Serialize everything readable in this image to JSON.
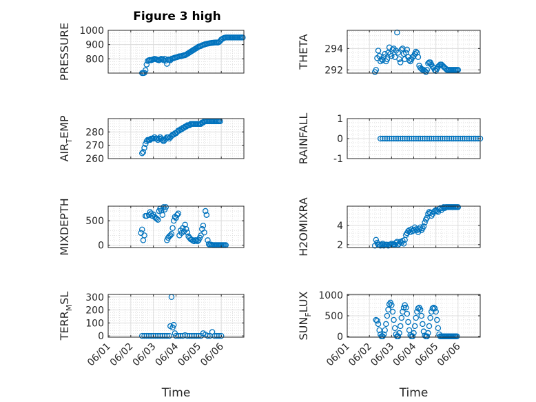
{
  "colors": {
    "marker": "#0072BD",
    "axis": "#262626",
    "grid": "#dcdcdc"
  },
  "chart_data": [
    {
      "type": "scatter",
      "title": "Figure 3 high",
      "ylabel": "PRESSURE",
      "xlabel": "",
      "ylim": [
        700,
        1000
      ],
      "yticks": [
        800,
        900,
        1000
      ],
      "x": [
        1.5,
        1.55,
        1.6,
        1.65,
        1.7,
        1.75,
        1.8,
        1.85,
        1.9,
        1.95,
        2.0,
        2.05,
        2.1,
        2.15,
        2.2,
        2.25,
        2.3,
        2.35,
        2.4,
        2.45,
        2.5,
        2.55,
        2.6,
        2.65,
        2.7,
        2.75,
        2.8,
        2.85,
        2.9,
        2.95,
        3.0,
        3.05,
        3.1,
        3.15,
        3.2,
        3.25,
        3.3,
        3.35,
        3.4,
        3.45,
        3.5,
        3.55,
        3.6,
        3.65,
        3.7,
        3.75,
        3.8,
        3.85,
        3.9,
        3.95,
        4.0,
        4.05,
        4.1,
        4.15,
        4.2,
        4.25,
        4.3,
        4.35,
        4.4,
        4.45,
        4.5,
        4.55,
        4.6,
        4.65,
        4.7,
        4.75,
        4.8,
        4.85,
        4.9,
        4.95,
        5.0,
        5.05,
        5.1,
        5.15,
        5.2,
        5.25,
        5.3,
        5.35,
        5.4,
        5.45,
        5.5,
        5.55,
        5.6,
        5.65,
        5.7,
        5.75,
        5.8,
        5.85,
        5.9,
        5.95
      ],
      "y": [
        700,
        700,
        702,
        720,
        760,
        785,
        790,
        792,
        790,
        793,
        797,
        800,
        798,
        795,
        792,
        790,
        795,
        800,
        798,
        790,
        800,
        788,
        765,
        795,
        793,
        790,
        800,
        803,
        805,
        808,
        810,
        812,
        815,
        818,
        818,
        820,
        822,
        825,
        826,
        830,
        835,
        840,
        845,
        850,
        855,
        860,
        865,
        870,
        875,
        880,
        885,
        888,
        890,
        895,
        897,
        900,
        903,
        905,
        907,
        908,
        910,
        911,
        912,
        913,
        914,
        915,
        915,
        914,
        918,
        925,
        935,
        940,
        945,
        948,
        950,
        950,
        950,
        950,
        950,
        950,
        950,
        950,
        950,
        950,
        950,
        950,
        950,
        950,
        950,
        950
      ]
    },
    {
      "type": "scatter",
      "title": "",
      "ylabel": "THETA",
      "xlabel": "",
      "ylim": [
        291.7,
        295.7
      ],
      "yticks": [
        292,
        294
      ],
      "x": [
        1.25,
        1.3,
        1.35,
        1.4,
        1.45,
        1.5,
        1.55,
        1.6,
        1.65,
        1.7,
        1.75,
        1.8,
        1.85,
        1.9,
        1.95,
        2.0,
        2.05,
        2.1,
        2.15,
        2.2,
        2.25,
        2.3,
        2.35,
        2.4,
        2.45,
        2.5,
        2.55,
        2.6,
        2.65,
        2.7,
        2.75,
        2.8,
        2.85,
        2.9,
        2.95,
        3.0,
        3.05,
        3.1,
        3.15,
        3.2,
        3.25,
        3.3,
        3.35,
        3.4,
        3.45,
        3.5,
        3.55,
        3.6,
        3.65,
        3.7,
        3.75,
        3.8,
        3.85,
        3.9,
        3.95,
        4.0,
        4.05,
        4.1,
        4.15,
        4.2,
        4.25,
        4.3,
        4.35,
        4.4,
        4.45,
        4.5,
        4.55,
        4.6,
        4.65,
        4.7,
        4.75,
        4.8,
        4.85,
        4.9,
        4.95,
        5.0
      ],
      "y": [
        291.8,
        292.0,
        293.1,
        293.8,
        293.3,
        292.8,
        293.0,
        292.9,
        293.2,
        293.5,
        292.8,
        293.0,
        293.6,
        294.1,
        293.5,
        293.3,
        293.9,
        294.0,
        293.2,
        293.8,
        295.5,
        293.6,
        293.0,
        292.7,
        293.9,
        294.0,
        293.5,
        293.0,
        293.6,
        293.9,
        293.2,
        292.9,
        292.8,
        293.0,
        293.2,
        293.3,
        293.5,
        293.7,
        293.6,
        293.2,
        292.4,
        292.2,
        292.1,
        292.0,
        292.0,
        291.9,
        291.8,
        292.0,
        292.6,
        292.7,
        292.7,
        292.5,
        292.3,
        292.2,
        292.0,
        291.9,
        292.1,
        292.3,
        292.4,
        292.5,
        292.5,
        292.4,
        292.3,
        292.2,
        292.1,
        292.0,
        292.0,
        292.0,
        292.0,
        292.0,
        292.0,
        292.0,
        292.0,
        292.0,
        292.0,
        292.0
      ]
    },
    {
      "type": "scatter",
      "title": "",
      "ylabel": "AIR_TEMP",
      "xlabel": "",
      "ylim": [
        260,
        290
      ],
      "yticks": [
        260,
        270,
        280
      ],
      "x": [
        1.5,
        1.55,
        1.6,
        1.65,
        1.7,
        1.75,
        1.8,
        1.85,
        1.9,
        1.95,
        2.0,
        2.05,
        2.1,
        2.15,
        2.2,
        2.25,
        2.3,
        2.35,
        2.4,
        2.45,
        2.5,
        2.55,
        2.6,
        2.65,
        2.7,
        2.75,
        2.8,
        2.85,
        2.9,
        2.95,
        3.0,
        3.05,
        3.1,
        3.15,
        3.2,
        3.25,
        3.3,
        3.35,
        3.4,
        3.45,
        3.5,
        3.55,
        3.6,
        3.65,
        3.7,
        3.75,
        3.8,
        3.85,
        3.9,
        3.95,
        4.0,
        4.05,
        4.1,
        4.15,
        4.2,
        4.25,
        4.3,
        4.35,
        4.4,
        4.45,
        4.5,
        4.55,
        4.6,
        4.65,
        4.7,
        4.75,
        4.8,
        4.85,
        4.9,
        4.95
      ],
      "y": [
        264,
        265,
        268,
        271,
        273,
        274,
        274,
        274,
        275,
        275,
        275,
        276,
        275,
        275,
        274,
        275,
        276,
        275,
        274,
        273,
        274,
        275,
        276,
        276,
        275,
        276,
        277,
        278,
        278,
        279,
        279,
        280,
        281,
        281,
        282,
        282,
        283,
        283,
        284,
        284,
        285,
        285,
        285,
        286,
        286,
        286,
        286,
        286,
        286,
        286,
        286,
        286,
        286,
        287,
        287,
        288,
        288,
        288,
        288,
        288,
        288,
        288,
        288,
        288,
        288,
        288,
        288,
        288,
        288,
        288
      ]
    },
    {
      "type": "scatter",
      "title": "",
      "ylabel": "RAINFALL",
      "xlabel": "",
      "ylim": [
        -1,
        1
      ],
      "yticks": [
        -1,
        0,
        1
      ],
      "x": [
        1.5,
        1.6,
        1.7,
        1.8,
        1.9,
        2.0,
        2.1,
        2.2,
        2.3,
        2.4,
        2.5,
        2.6,
        2.7,
        2.8,
        2.9,
        3.0,
        3.1,
        3.2,
        3.3,
        3.4,
        3.5,
        3.6,
        3.7,
        3.8,
        3.9,
        4.0,
        4.1,
        4.2,
        4.3,
        4.4,
        4.5,
        4.6,
        4.7,
        4.8,
        4.9,
        5.0,
        5.1,
        5.2,
        5.3,
        5.4,
        5.5,
        5.6,
        5.7,
        5.8,
        5.9,
        6.0
      ],
      "y": [
        0,
        0,
        0,
        0,
        0,
        0,
        0,
        0,
        0,
        0,
        0,
        0,
        0,
        0,
        0,
        0,
        0,
        0,
        0,
        0,
        0,
        0,
        0,
        0,
        0,
        0,
        0,
        0,
        0,
        0,
        0,
        0,
        0,
        0,
        0,
        0,
        0,
        0,
        0,
        0,
        0,
        0,
        0,
        0,
        0,
        0
      ]
    },
    {
      "type": "scatter",
      "title": "",
      "ylabel": "MIXDEPTH",
      "xlabel": "",
      "ylim": [
        -50,
        800
      ],
      "yticks": [
        0,
        500
      ],
      "x": [
        1.45,
        1.5,
        1.55,
        1.6,
        1.65,
        1.7,
        1.8,
        1.85,
        1.9,
        1.95,
        2.0,
        2.05,
        2.1,
        2.15,
        2.2,
        2.25,
        2.3,
        2.35,
        2.4,
        2.45,
        2.5,
        2.55,
        2.6,
        2.65,
        2.7,
        2.75,
        2.8,
        2.85,
        2.9,
        2.95,
        3.0,
        3.05,
        3.1,
        3.15,
        3.2,
        3.25,
        3.3,
        3.35,
        3.4,
        3.45,
        3.5,
        3.55,
        3.6,
        3.65,
        3.7,
        3.75,
        3.8,
        3.85,
        3.9,
        3.95,
        4.0,
        4.05,
        4.1,
        4.15,
        4.2,
        4.25,
        4.3,
        4.35,
        4.4,
        4.45,
        4.5,
        4.55,
        4.6,
        4.65,
        4.7,
        4.75,
        4.8,
        4.85,
        4.9,
        4.95,
        5.0,
        5.05,
        5.1,
        5.15,
        5.2
      ],
      "y": [
        250,
        320,
        100,
        200,
        600,
        600,
        620,
        680,
        650,
        600,
        630,
        580,
        560,
        540,
        520,
        700,
        750,
        710,
        620,
        780,
        730,
        780,
        100,
        150,
        180,
        200,
        230,
        350,
        500,
        580,
        560,
        620,
        650,
        200,
        300,
        250,
        350,
        280,
        420,
        330,
        260,
        180,
        150,
        120,
        110,
        90,
        80,
        100,
        100,
        80,
        100,
        150,
        200,
        330,
        400,
        260,
        700,
        620,
        100,
        20,
        0,
        10,
        0,
        0,
        0,
        0,
        0,
        0,
        0,
        0,
        0,
        0,
        0,
        0,
        0
      ]
    },
    {
      "type": "scatter",
      "title": "",
      "ylabel": "H2OMIXRA",
      "xlabel": "",
      "ylim": [
        1.7,
        6
      ],
      "yticks": [
        2,
        4
      ],
      "x": [
        1.25,
        1.3,
        1.35,
        1.4,
        1.45,
        1.5,
        1.55,
        1.6,
        1.65,
        1.7,
        1.75,
        1.8,
        1.85,
        1.9,
        1.95,
        2.0,
        2.05,
        2.1,
        2.15,
        2.2,
        2.25,
        2.3,
        2.35,
        2.4,
        2.45,
        2.5,
        2.55,
        2.6,
        2.65,
        2.7,
        2.75,
        2.8,
        2.85,
        2.9,
        2.95,
        3.0,
        3.05,
        3.1,
        3.15,
        3.2,
        3.25,
        3.3,
        3.35,
        3.4,
        3.45,
        3.5,
        3.55,
        3.6,
        3.65,
        3.7,
        3.75,
        3.8,
        3.85,
        3.9,
        3.95,
        4.0,
        4.05,
        4.1,
        4.15,
        4.2,
        4.25,
        4.3,
        4.35,
        4.4,
        4.45,
        4.5,
        4.55,
        4.6,
        4.65,
        4.7,
        4.75,
        4.8,
        4.85,
        4.9,
        4.95,
        5.0
      ],
      "y": [
        1.9,
        2.5,
        2.2,
        2.0,
        2.0,
        1.9,
        2.0,
        2.1,
        1.9,
        2.0,
        2.0,
        2.0,
        1.9,
        2.0,
        2.0,
        2.1,
        2.0,
        2.0,
        2.0,
        2.2,
        2.3,
        2.0,
        2.1,
        2.3,
        2.2,
        2.4,
        2.1,
        2.5,
        3.0,
        3.2,
        3.4,
        3.5,
        3.3,
        3.6,
        3.4,
        3.5,
        3.8,
        3.6,
        3.5,
        3.3,
        3.6,
        3.8,
        3.5,
        3.7,
        3.9,
        4.3,
        4.6,
        4.8,
        5.2,
        5.4,
        5.3,
        5.0,
        5.2,
        5.4,
        5.5,
        5.6,
        5.5,
        5.4,
        5.7,
        5.8,
        5.6,
        5.8,
        5.9,
        5.8,
        5.9,
        5.9,
        5.9,
        5.9,
        5.9,
        5.9,
        5.9,
        5.9,
        5.9,
        5.9,
        5.9,
        5.9
      ]
    },
    {
      "type": "scatter",
      "title": "",
      "ylabel": "TERR_MSL",
      "xlabel": "Time",
      "ylim": [
        -10,
        320
      ],
      "yticks": [
        0,
        100,
        200,
        300
      ],
      "xticklabels": [
        "06/01",
        "06/02",
        "06/03",
        "06/04",
        "06/05",
        "06/06"
      ],
      "x": [
        1.5,
        1.6,
        1.7,
        1.8,
        1.9,
        2.0,
        2.1,
        2.2,
        2.3,
        2.4,
        2.5,
        2.6,
        2.7,
        2.75,
        2.8,
        2.85,
        2.9,
        2.95,
        3.0,
        3.1,
        3.2,
        3.3,
        3.4,
        3.5,
        3.6,
        3.7,
        3.8,
        3.9,
        4.0,
        4.1,
        4.2,
        4.3,
        4.4,
        4.5,
        4.6,
        4.7,
        4.8,
        4.9,
        5.0
      ],
      "y": [
        0,
        0,
        0,
        0,
        0,
        0,
        0,
        0,
        0,
        0,
        0,
        0,
        0,
        75,
        300,
        65,
        85,
        20,
        0,
        0,
        0,
        0,
        5,
        0,
        0,
        0,
        0,
        0,
        0,
        0,
        20,
        10,
        0,
        0,
        30,
        0,
        0,
        0,
        0
      ]
    },
    {
      "type": "scatter",
      "title": "",
      "ylabel": "SUN_FLUX",
      "xlabel": "Time",
      "ylim": [
        -20,
        1020
      ],
      "yticks": [
        0,
        500,
        1000
      ],
      "xticklabels": [
        "06/01",
        "06/02",
        "06/03",
        "06/04",
        "06/05",
        "06/06"
      ],
      "x": [
        1.3,
        1.35,
        1.4,
        1.45,
        1.5,
        1.55,
        1.6,
        1.65,
        1.7,
        1.75,
        1.8,
        1.85,
        1.9,
        1.95,
        2.0,
        2.05,
        2.1,
        2.15,
        2.2,
        2.25,
        2.3,
        2.35,
        2.4,
        2.45,
        2.5,
        2.55,
        2.6,
        2.65,
        2.7,
        2.75,
        2.8,
        2.85,
        2.9,
        2.95,
        3.0,
        3.05,
        3.1,
        3.15,
        3.2,
        3.25,
        3.3,
        3.35,
        3.4,
        3.45,
        3.5,
        3.55,
        3.6,
        3.65,
        3.7,
        3.75,
        3.8,
        3.85,
        3.9,
        3.95,
        4.0,
        4.05,
        4.1,
        4.15,
        4.2,
        4.25,
        4.3,
        4.35,
        4.4,
        4.45,
        4.5,
        4.55,
        4.6,
        4.65,
        4.7,
        4.75,
        4.8,
        4.85,
        4.9,
        4.95
      ],
      "y": [
        400,
        380,
        300,
        150,
        50,
        0,
        0,
        50,
        150,
        300,
        500,
        650,
        780,
        820,
        760,
        600,
        400,
        200,
        50,
        0,
        0,
        80,
        250,
        450,
        600,
        700,
        760,
        700,
        550,
        350,
        150,
        30,
        0,
        0,
        80,
        250,
        450,
        600,
        680,
        700,
        650,
        500,
        300,
        120,
        20,
        0,
        0,
        80,
        250,
        450,
        600,
        680,
        700,
        680,
        600,
        400,
        200,
        50,
        0,
        0,
        0,
        0,
        0,
        0,
        0,
        0,
        0,
        0,
        0,
        0,
        0,
        0,
        0,
        0
      ]
    }
  ]
}
